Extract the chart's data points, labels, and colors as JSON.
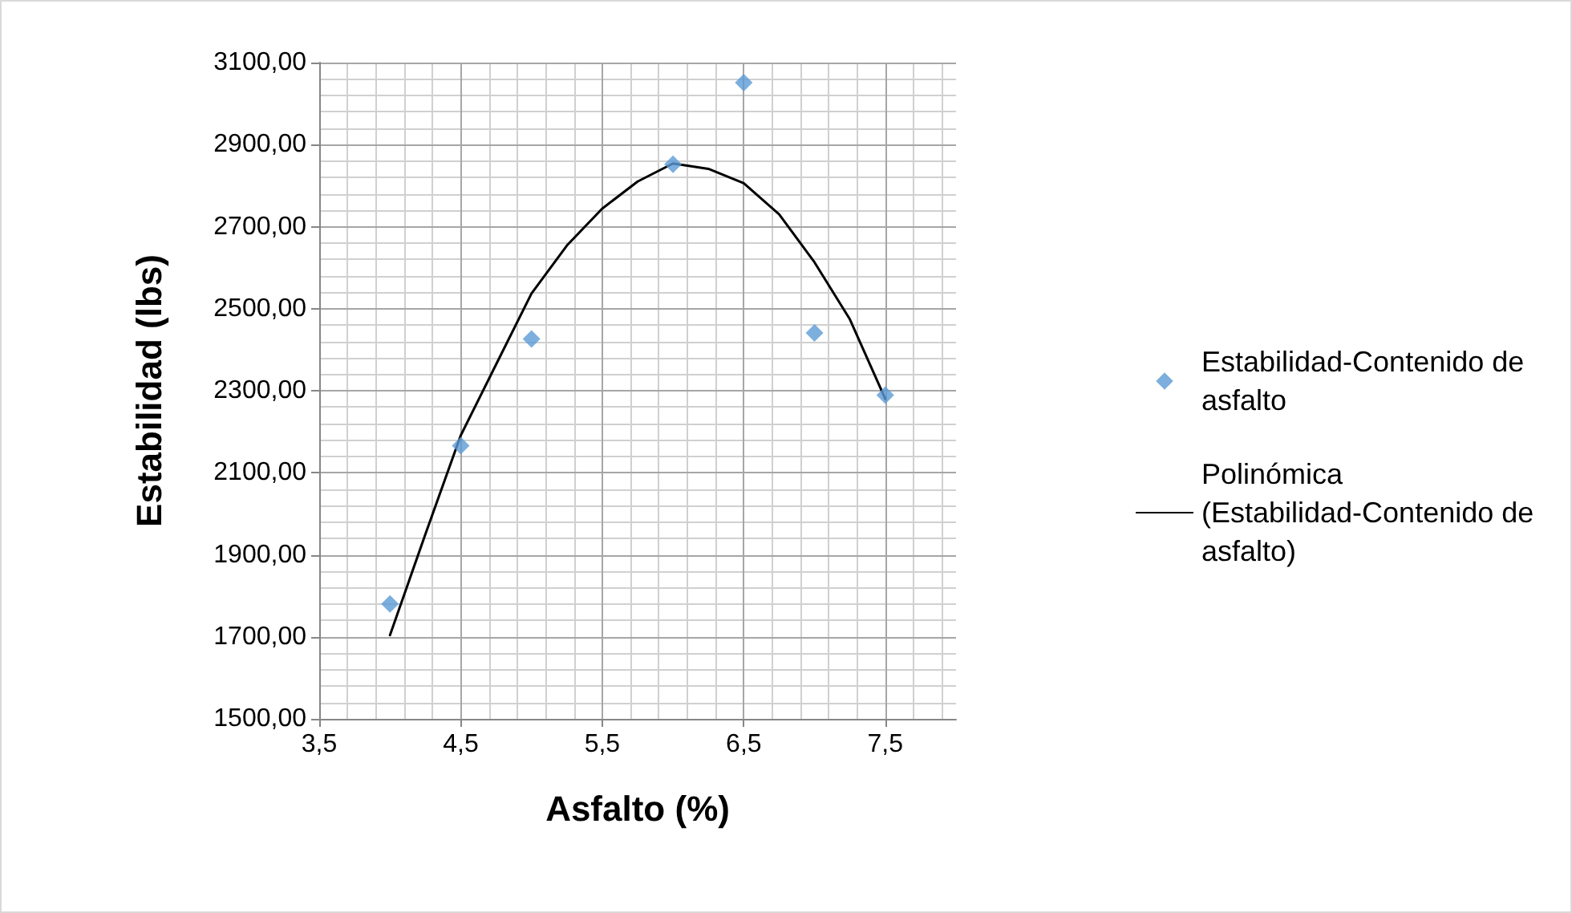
{
  "chart_data": {
    "type": "scatter",
    "xlabel": "Asfalto (%)",
    "ylabel": "Estabilidad (lbs)",
    "xlim": [
      3.5,
      8.0
    ],
    "ylim": [
      1500,
      3100
    ],
    "xticks": [
      {
        "value": 3.5,
        "label": "3,5"
      },
      {
        "value": 4.5,
        "label": "4,5"
      },
      {
        "value": 5.5,
        "label": "5,5"
      },
      {
        "value": 6.5,
        "label": "6,5"
      },
      {
        "value": 7.5,
        "label": "7,5"
      }
    ],
    "yticks": [
      {
        "value": 1500,
        "label": "1500,00"
      },
      {
        "value": 1700,
        "label": "1700,00"
      },
      {
        "value": 1900,
        "label": "1900,00"
      },
      {
        "value": 2100,
        "label": "2100,00"
      },
      {
        "value": 2300,
        "label": "2300,00"
      },
      {
        "value": 2500,
        "label": "2500,00"
      },
      {
        "value": 2700,
        "label": "2700,00"
      },
      {
        "value": 2900,
        "label": "2900,00"
      },
      {
        "value": 3100,
        "label": "3100,00"
      }
    ],
    "grid": true,
    "legend": "right",
    "series": [
      {
        "name": "Estabilidad-Contenido de asfalto",
        "marker": "diamond",
        "color": "#5b9bd5",
        "x": [
          4.0,
          4.5,
          5.0,
          6.0,
          6.5,
          7.0,
          7.5
        ],
        "values": [
          1780,
          2166,
          2426,
          2852,
          3051,
          2441,
          2289
        ]
      },
      {
        "name": "Polinómica (Estabilidad-Contenido de asfalto)",
        "type": "line",
        "marker": "none",
        "line_style": "solid",
        "color": "#000000",
        "x": [
          4.0,
          4.25,
          4.5,
          4.75,
          5.0,
          5.25,
          5.5,
          5.75,
          6.0,
          6.25,
          6.5,
          6.75,
          7.0,
          7.25,
          7.5
        ],
        "values": [
          1704,
          1950,
          2191,
          2364,
          2537,
          2654,
          2744,
          2810,
          2854,
          2841,
          2806,
          2730,
          2613,
          2474,
          2280
        ]
      }
    ]
  }
}
